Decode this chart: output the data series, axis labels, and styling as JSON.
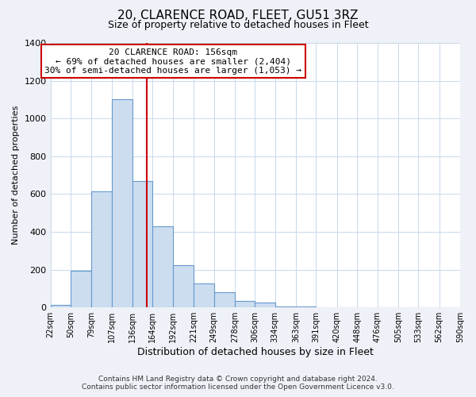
{
  "title": "20, CLARENCE ROAD, FLEET, GU51 3RZ",
  "subtitle": "Size of property relative to detached houses in Fleet",
  "xlabel": "Distribution of detached houses by size in Fleet",
  "ylabel": "Number of detached properties",
  "bar_left_edges": [
    22,
    50,
    79,
    107,
    136,
    164,
    192,
    221,
    249,
    278,
    306,
    334,
    363,
    391,
    420,
    448,
    476,
    505,
    533,
    562
  ],
  "bar_heights": [
    15,
    195,
    615,
    1100,
    670,
    430,
    225,
    125,
    80,
    35,
    28,
    5,
    5,
    0,
    0,
    0,
    0,
    0,
    0,
    0
  ],
  "bin_labels": [
    "22sqm",
    "50sqm",
    "79sqm",
    "107sqm",
    "136sqm",
    "164sqm",
    "192sqm",
    "221sqm",
    "249sqm",
    "278sqm",
    "306sqm",
    "334sqm",
    "363sqm",
    "391sqm",
    "420sqm",
    "448sqm",
    "476sqm",
    "505sqm",
    "533sqm",
    "562sqm",
    "590sqm"
  ],
  "bar_color": "#ccddf0",
  "bar_edge_color": "#6699cc",
  "property_line_x": 156,
  "annotation_text_line1": "20 CLARENCE ROAD: 156sqm",
  "annotation_text_line2": "← 69% of detached houses are smaller (2,404)",
  "annotation_text_line3": "30% of semi-detached houses are larger (1,053) →",
  "annotation_box_color": "#ffffff",
  "annotation_box_edge": "#cc0000",
  "property_line_color": "#cc0000",
  "ylim": [
    0,
    1400
  ],
  "yticks": [
    0,
    200,
    400,
    600,
    800,
    1000,
    1200,
    1400
  ],
  "footer_line1": "Contains HM Land Registry data © Crown copyright and database right 2024.",
  "footer_line2": "Contains public sector information licensed under the Open Government Licence v3.0.",
  "background_color": "#eef2f8",
  "plot_background_color": "#ffffff",
  "grid_color": "#c8d8ea",
  "title_fontsize": 11,
  "subtitle_fontsize": 9,
  "annotation_fontsize": 8
}
